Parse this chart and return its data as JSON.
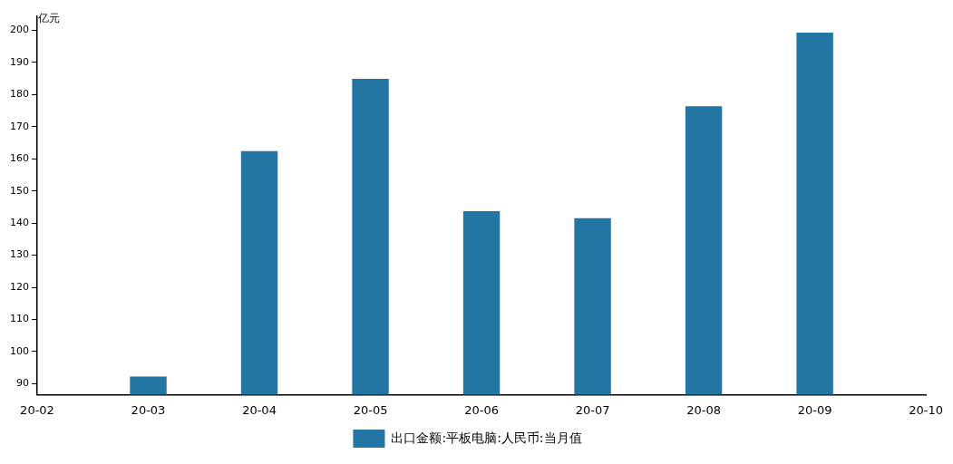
{
  "chart_data": {
    "type": "bar",
    "ylabel": "亿元",
    "categories": [
      "20-02",
      "20-03",
      "20-04",
      "20-05",
      "20-06",
      "20-07",
      "20-08",
      "20-09",
      "20-10"
    ],
    "series": [
      {
        "name": "出口金额:平板电脑:人民币:当月值",
        "color": "#2376a3",
        "values": [
          null,
          92.2,
          162.4,
          184.9,
          143.7,
          141.5,
          176.4,
          199.3,
          null
        ]
      }
    ],
    "ylim": [
      86.6,
      204.5
    ],
    "yticks": [
      90,
      100,
      110,
      120,
      130,
      140,
      150,
      160,
      170,
      180,
      190,
      200
    ],
    "grid": false,
    "legend": "bottom"
  }
}
